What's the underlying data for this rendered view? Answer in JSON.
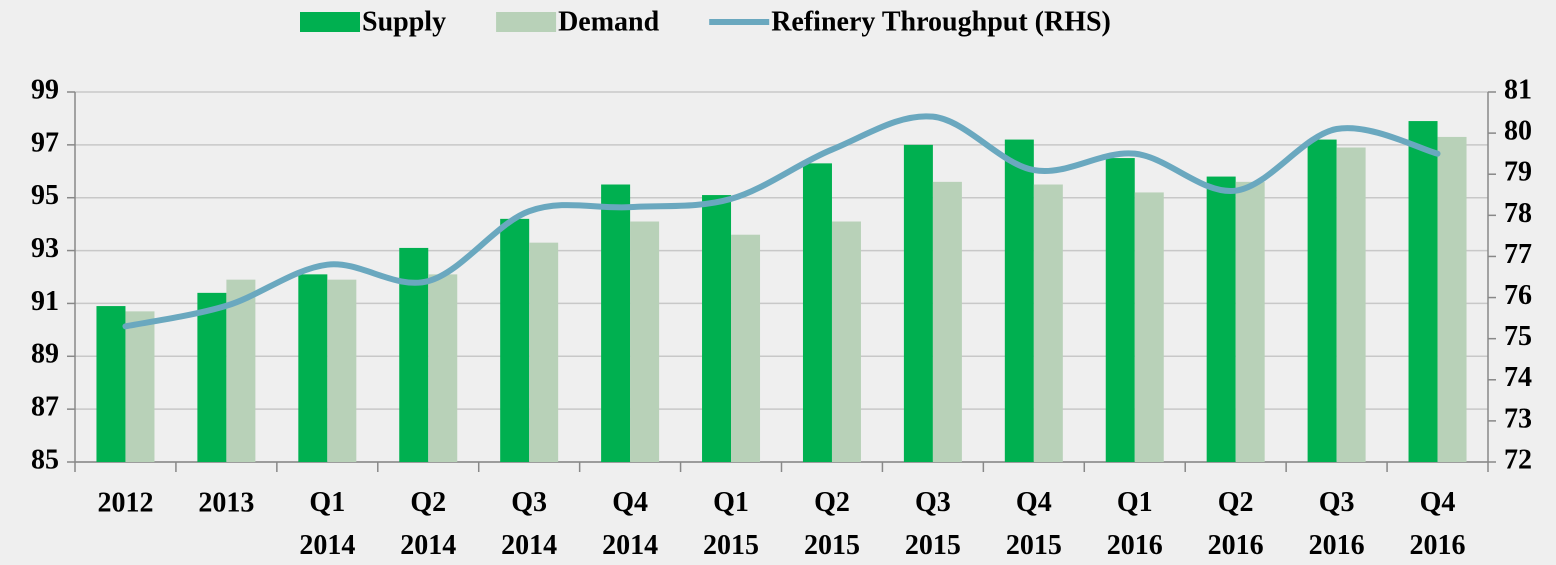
{
  "chart_data": {
    "type": "bar",
    "categories": [
      "2012",
      "2013",
      "Q1 2014",
      "Q2 2014",
      "Q3 2014",
      "Q4 2014",
      "Q1 2015",
      "Q2 2015",
      "Q3 2015",
      "Q4 2015",
      "Q1 2016",
      "Q2 2016",
      "Q3 2016",
      "Q4 2016"
    ],
    "series": [
      {
        "name": "Supply",
        "color": "#00b050",
        "type": "bar",
        "values": [
          90.9,
          91.4,
          92.1,
          93.1,
          94.2,
          95.5,
          95.1,
          96.3,
          97.0,
          97.2,
          96.5,
          95.8,
          97.2,
          97.9
        ]
      },
      {
        "name": "Demand",
        "color": "#b8d1b8",
        "type": "bar",
        "values": [
          90.7,
          91.9,
          91.9,
          92.1,
          93.3,
          94.1,
          93.6,
          94.1,
          95.6,
          95.5,
          95.2,
          95.6,
          96.9,
          97.3
        ]
      },
      {
        "name": "Refinery Throughput (RHS)",
        "color": "#6aa8bf",
        "type": "line",
        "axis": "y2",
        "values": [
          75.3,
          75.8,
          76.8,
          76.4,
          78.1,
          78.2,
          78.4,
          79.6,
          80.4,
          79.1,
          79.5,
          78.6,
          80.1,
          79.5
        ]
      }
    ],
    "ylim": [
      85,
      99
    ],
    "yticks": [
      85,
      87,
      89,
      91,
      93,
      95,
      97,
      99
    ],
    "y2lim": [
      72,
      81
    ],
    "y2ticks": [
      72,
      73,
      74,
      75,
      76,
      77,
      78,
      79,
      80,
      81
    ],
    "grid": true,
    "legend": "top"
  }
}
